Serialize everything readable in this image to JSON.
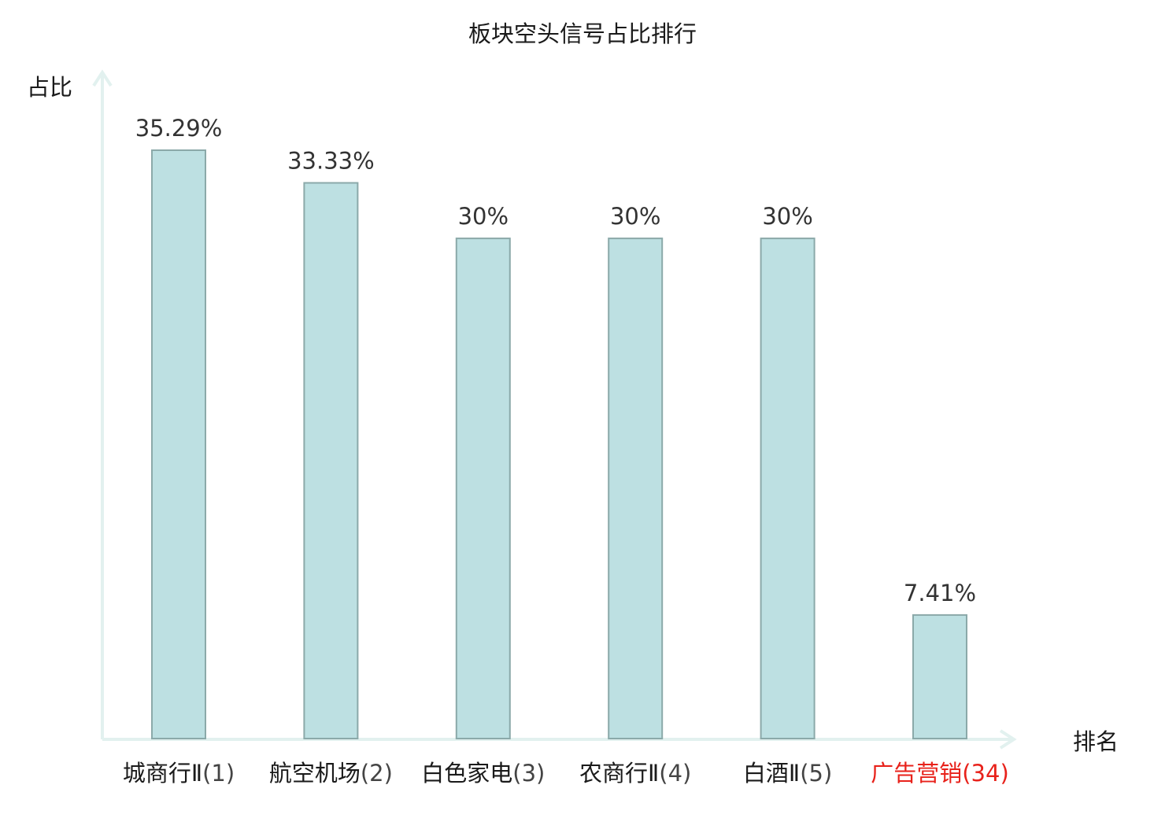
{
  "chart_data": {
    "type": "bar",
    "title": "板块空头信号占比排行",
    "ylabel": "占比",
    "xlabel": "排名",
    "categories": [
      "城商行Ⅱ",
      "航空机场",
      "白色家电",
      "农商行Ⅱ",
      "白酒Ⅱ",
      "广告营销"
    ],
    "ranks": [
      "(1)",
      "(2)",
      "(3)",
      "(4)",
      "(5)",
      "(34)"
    ],
    "values": [
      35.29,
      33.33,
      30,
      30,
      30,
      7.41
    ],
    "value_labels": [
      "35.29%",
      "33.33%",
      "30%",
      "30%",
      "30%",
      "7.41%"
    ],
    "highlight_index": 5,
    "ylim": [
      0,
      35.29
    ],
    "grid": false,
    "colors": {
      "bar_fill": "#bde0e2",
      "bar_stroke": "#8ba9a9",
      "axis": "#e2f1ef",
      "text": "#1a1a1a",
      "value_text": "#333333",
      "rank_text": "#444444",
      "highlight": "#e8221b"
    }
  }
}
